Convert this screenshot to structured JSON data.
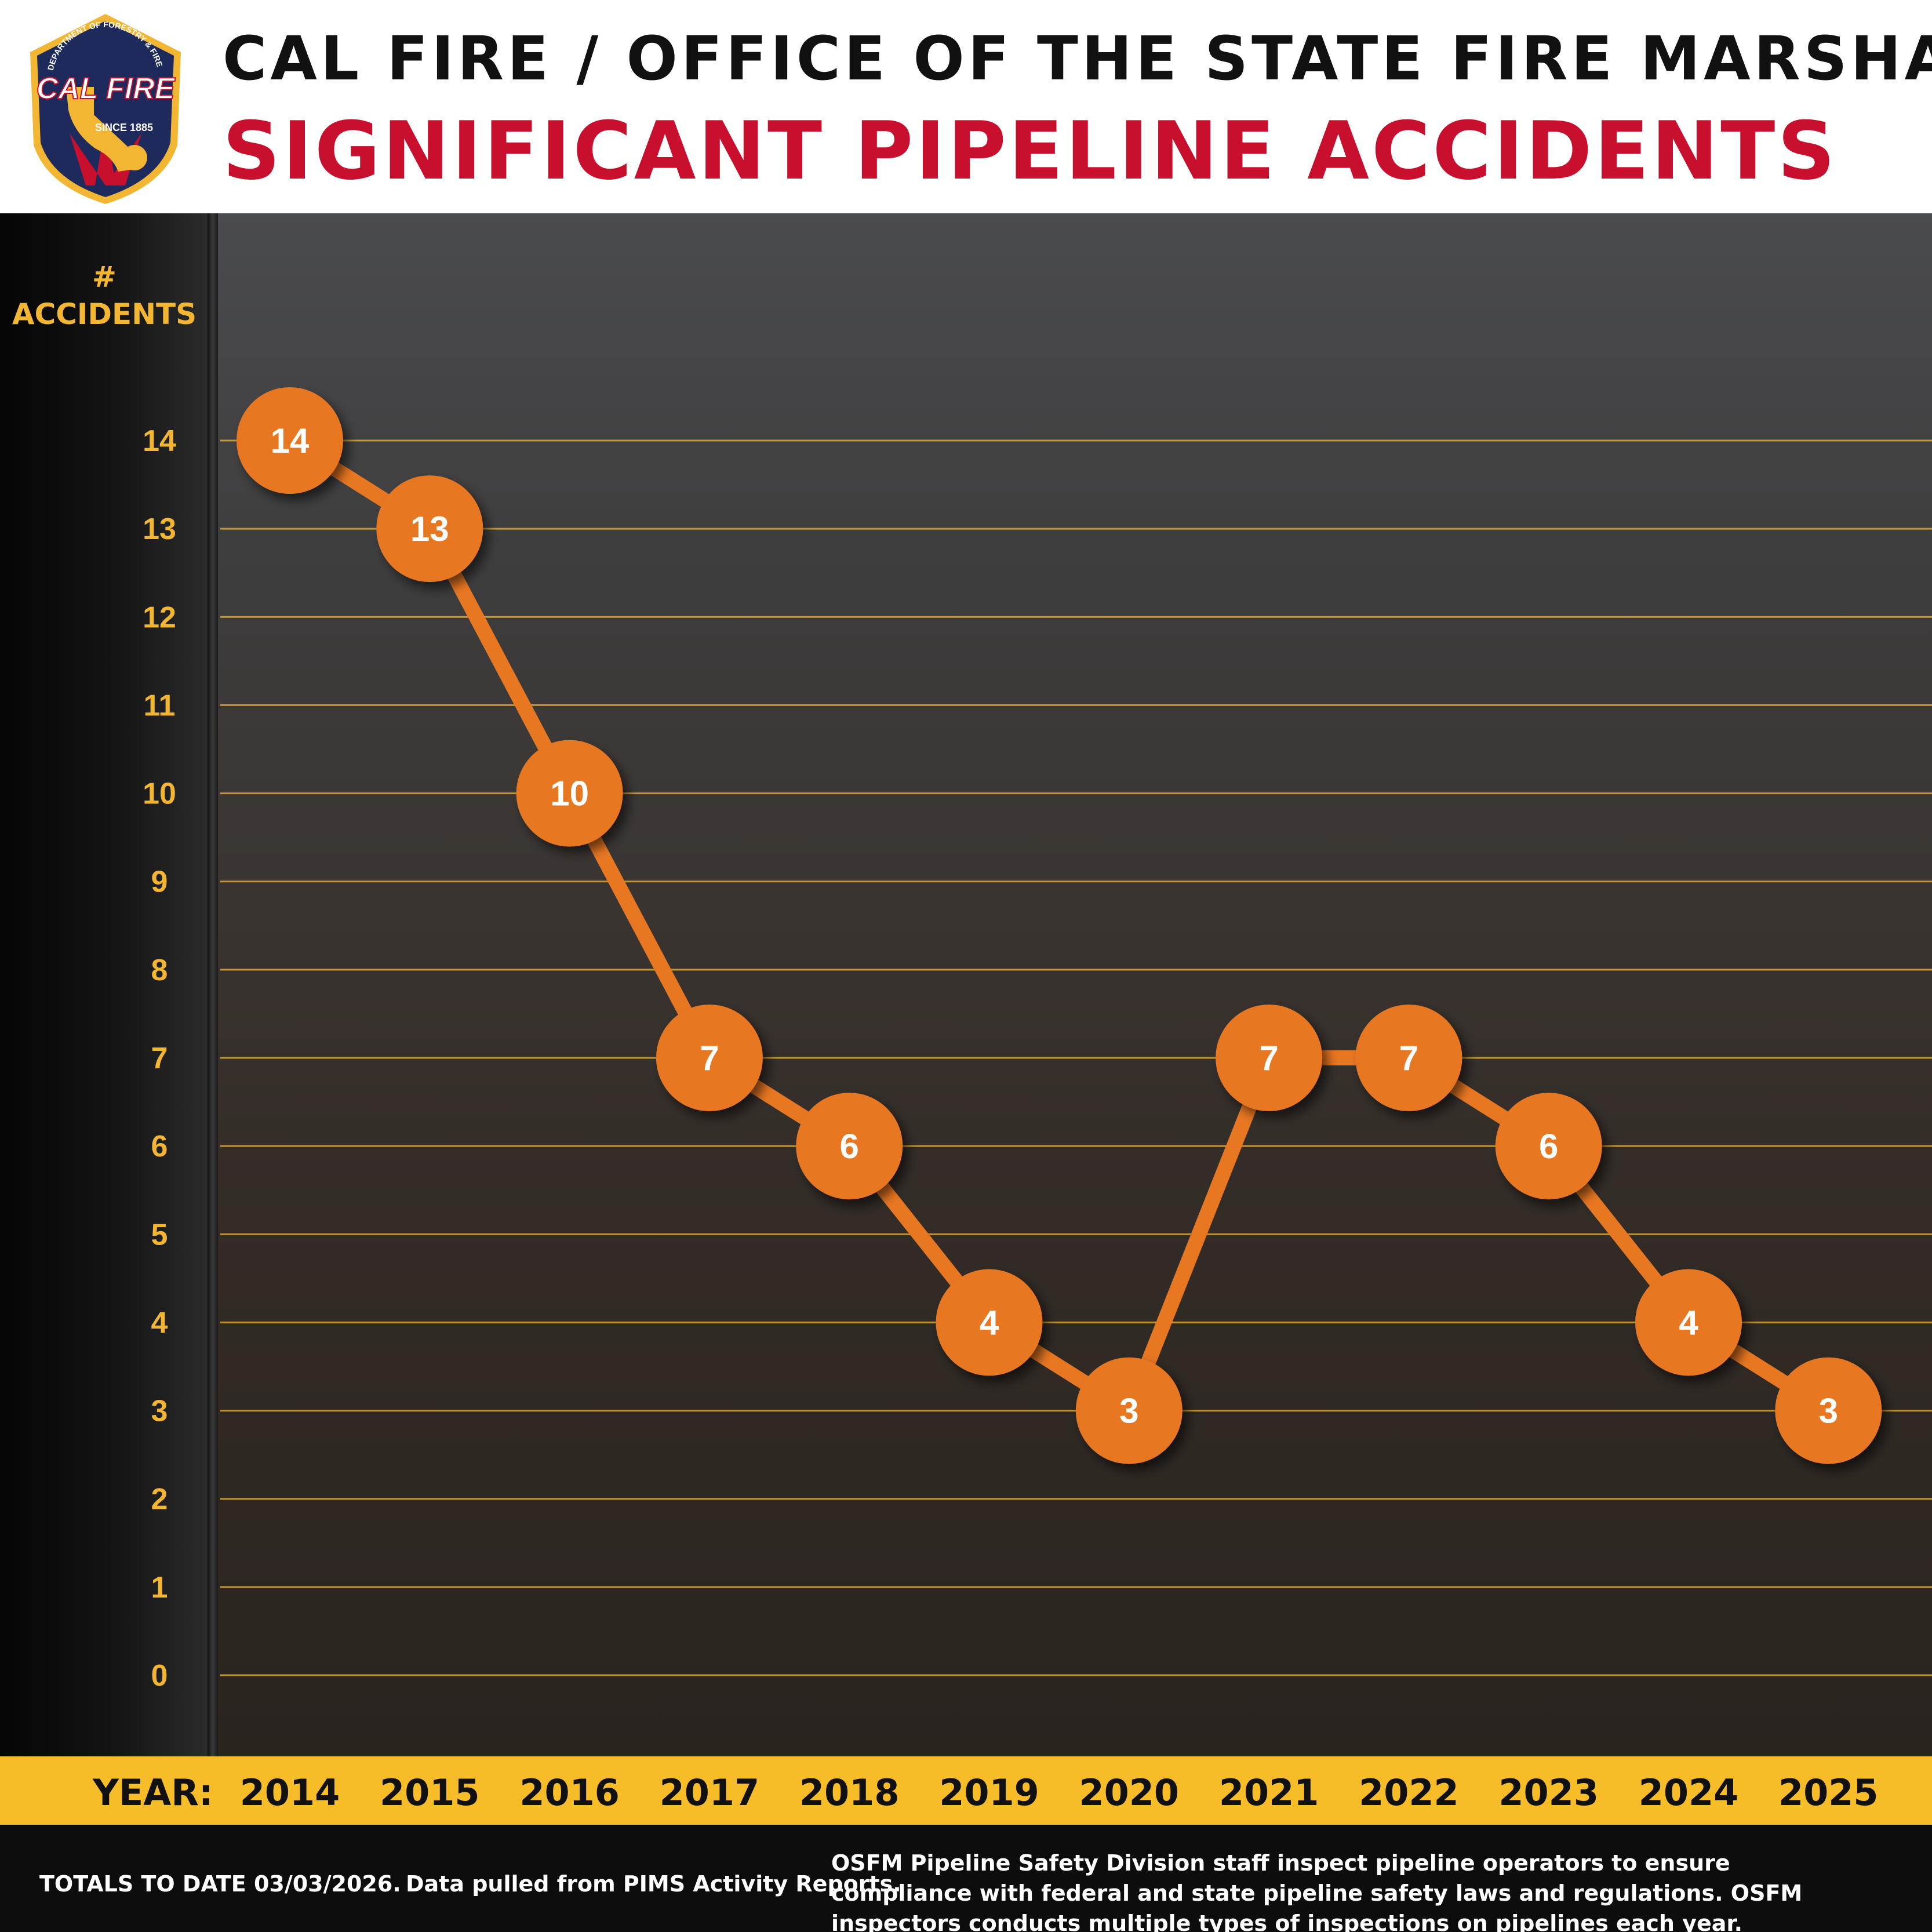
{
  "header": {
    "title_line1": "CAL FIRE / OFFICE OF THE STATE FIRE MARSHAL",
    "title_line2": "SIGNIFICANT PIPELINE ACCIDENTS",
    "logo": {
      "top_text": "CALIFORNIA DEPARTMENT OF FORESTRY & FIRE PROTECTION",
      "brand": "CAL FIRE",
      "since": "SINCE 1885",
      "colors": {
        "shield": "#1f2a5c",
        "border": "#f2b632",
        "accent": "#c8102e"
      }
    }
  },
  "colors": {
    "accent_orange": "#e87722",
    "axis_gold": "#f2b632",
    "gridline": "#d9a73a",
    "year_band": "#f6bd29",
    "title_red": "#c8102e"
  },
  "chart_data": {
    "type": "line",
    "title": "SIGNIFICANT PIPELINE ACCIDENTS",
    "ylabel": "# ACCIDENTS",
    "xlabel": "YEAR:",
    "x": [
      "2014",
      "2015",
      "2016",
      "2017",
      "2018",
      "2019",
      "2020",
      "2021",
      "2022",
      "2023",
      "2024",
      "2025"
    ],
    "series": [
      {
        "values": [
          14,
          13,
          10,
          7,
          6,
          4,
          3,
          7,
          7,
          6,
          4,
          3
        ]
      }
    ],
    "yticks": [
      0,
      1,
      2,
      3,
      4,
      5,
      6,
      7,
      8,
      9,
      10,
      11,
      12,
      13,
      14
    ],
    "ylim": [
      0,
      14
    ],
    "grid": true,
    "data_labels": true
  },
  "footer": {
    "totals": "TOTALS TO DATE 03/03/2026.",
    "source": "Data pulled from PIMS Activity Reports.",
    "description": "OSFM Pipeline Safety Division staff inspect pipeline operators to ensure compliance with federal and state pipeline safety laws and regulations. OSFM inspectors conducts multiple types of inspections on pipelines each year."
  }
}
